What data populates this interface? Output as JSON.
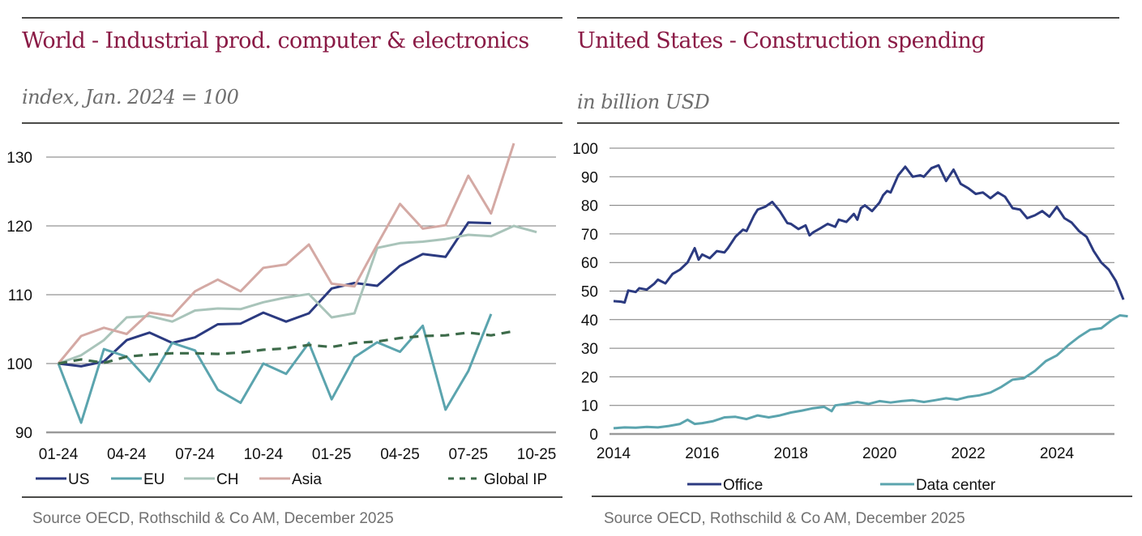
{
  "panels": {
    "left": {
      "title": "World - Industrial prod. computer & electronics",
      "subtitle": "index, Jan. 2024 = 100",
      "source": "Source OECD, Rothschild & Co AM, December 2025"
    },
    "right": {
      "title": "United States - Construction spending",
      "subtitle": "in billion USD",
      "source": "Source OECD, Rothschild & Co AM, December 2025"
    }
  },
  "chart_data": [
    {
      "type": "line",
      "title": "World - Industrial prod. computer & electronics",
      "subtitle": "index, Jan. 2024 = 100",
      "xlabel": "",
      "ylabel": "index, Jan. 2024 = 100",
      "ylim": [
        90,
        130
      ],
      "yticks": [
        90,
        100,
        110,
        120,
        130
      ],
      "xtick_labels": [
        "01-24",
        "04-24",
        "07-24",
        "10-24",
        "01-25",
        "04-25",
        "07-25",
        "10-25"
      ],
      "xtick_month_index": [
        0,
        3,
        6,
        9,
        12,
        15,
        18,
        21
      ],
      "x_months": [
        "01-24",
        "02-24",
        "03-24",
        "04-24",
        "05-24",
        "06-24",
        "07-24",
        "08-24",
        "09-24",
        "10-24",
        "11-24",
        "12-24",
        "01-25",
        "02-25",
        "03-25",
        "04-25",
        "05-25",
        "06-25",
        "07-25",
        "08-25",
        "09-25",
        "10-25"
      ],
      "grid": true,
      "legend_position": "bottom",
      "series": [
        {
          "name": "US",
          "color": "#2b3a80",
          "dashed": false,
          "values": [
            100,
            99.6,
            100.3,
            103.4,
            104.5,
            103.0,
            103.8,
            105.7,
            105.8,
            107.4,
            106.1,
            107.3,
            110.9,
            111.7,
            111.3,
            114.2,
            115.9,
            115.5,
            120.5,
            120.4,
            null,
            null
          ]
        },
        {
          "name": "EU",
          "color": "#5ba4ae",
          "dashed": false,
          "values": [
            100,
            91.4,
            102.1,
            101.0,
            97.4,
            103.0,
            101.9,
            96.2,
            94.3,
            100.0,
            98.5,
            103.0,
            94.8,
            100.9,
            103.1,
            101.7,
            105.5,
            93.3,
            98.9,
            107.2,
            null,
            null
          ]
        },
        {
          "name": "CH",
          "color": "#a9c4ba",
          "dashed": false,
          "values": [
            100,
            101.2,
            103.4,
            106.7,
            106.9,
            106.1,
            107.7,
            108.0,
            107.9,
            108.9,
            109.6,
            110.1,
            106.7,
            107.3,
            116.8,
            117.5,
            117.7,
            118.1,
            118.7,
            118.5,
            120.0,
            119.1
          ]
        },
        {
          "name": "Asia",
          "color": "#d4a9a4",
          "dashed": false,
          "values": [
            100,
            104.0,
            105.2,
            104.3,
            107.4,
            106.9,
            110.5,
            112.2,
            110.5,
            113.9,
            114.4,
            117.3,
            111.6,
            111.2,
            117.3,
            123.2,
            119.6,
            120.1,
            127.3,
            121.8,
            132.0,
            null
          ]
        },
        {
          "name": "Global IP",
          "color": "#3d6b4a",
          "dashed": true,
          "values": [
            100,
            100.6,
            100.1,
            101.0,
            101.3,
            101.5,
            101.5,
            101.4,
            101.6,
            102.0,
            102.2,
            102.7,
            102.4,
            103.0,
            103.2,
            103.7,
            104.0,
            104.1,
            104.5,
            104.1,
            104.7,
            null
          ]
        }
      ]
    },
    {
      "type": "line",
      "title": "United States - Construction spending",
      "subtitle": "in billion USD",
      "xlabel": "",
      "ylabel": "in billion USD",
      "ylim": [
        0,
        100
      ],
      "yticks": [
        0,
        10,
        20,
        30,
        40,
        50,
        60,
        70,
        80,
        90,
        100
      ],
      "xlim": [
        2014,
        2025.75
      ],
      "xtick_labels": [
        "2014",
        "2016",
        "2018",
        "2020",
        "2022",
        "2024"
      ],
      "xtick_values": [
        2014,
        2016,
        2018,
        2020,
        2022,
        2024
      ],
      "grid": true,
      "legend_position": "bottom",
      "series": [
        {
          "name": "Office",
          "color": "#2b3a80",
          "dashed": false,
          "x": [
            2014.0,
            2014.17,
            2014.25,
            2014.33,
            2014.5,
            2014.58,
            2014.75,
            2014.92,
            2015.0,
            2015.17,
            2015.33,
            2015.5,
            2015.67,
            2015.83,
            2015.92,
            2016.0,
            2016.17,
            2016.33,
            2016.5,
            2016.58,
            2016.75,
            2016.92,
            2017.0,
            2017.17,
            2017.25,
            2017.42,
            2017.58,
            2017.75,
            2017.92,
            2018.0,
            2018.17,
            2018.33,
            2018.42,
            2018.5,
            2018.67,
            2018.83,
            2019.0,
            2019.08,
            2019.25,
            2019.42,
            2019.5,
            2019.58,
            2019.67,
            2019.83,
            2020.0,
            2020.08,
            2020.17,
            2020.25,
            2020.42,
            2020.58,
            2020.75,
            2020.92,
            2021.0,
            2021.17,
            2021.33,
            2021.5,
            2021.67,
            2021.83,
            2022.0,
            2022.17,
            2022.33,
            2022.5,
            2022.67,
            2022.83,
            2023.0,
            2023.17,
            2023.33,
            2023.5,
            2023.67,
            2023.83,
            2024.0,
            2024.17,
            2024.33,
            2024.5,
            2024.67,
            2024.83,
            2025.0,
            2025.17,
            2025.33,
            2025.5
          ],
          "values": [
            46.5,
            46.3,
            46.0,
            50.2,
            49.7,
            51.0,
            50.5,
            52.6,
            54.0,
            52.7,
            56.0,
            57.5,
            60.0,
            65.0,
            61.0,
            62.8,
            61.5,
            64.0,
            63.5,
            65.0,
            69.0,
            71.5,
            71.0,
            76.5,
            78.5,
            79.5,
            81.2,
            78.0,
            73.8,
            73.5,
            71.7,
            73.0,
            69.5,
            70.5,
            72.0,
            73.5,
            72.5,
            75.0,
            74.2,
            77.0,
            75.0,
            79.0,
            80.0,
            78.0,
            81.0,
            83.5,
            85.0,
            84.5,
            90.5,
            93.5,
            90.0,
            90.5,
            90.0,
            93.0,
            94.0,
            88.5,
            92.5,
            87.5,
            86.0,
            84.0,
            84.5,
            82.5,
            84.5,
            83.0,
            79.0,
            78.5,
            75.5,
            76.5,
            78.0,
            76.0,
            79.5,
            75.5,
            74.0,
            71.0,
            69.0,
            64.0,
            60.0,
            57.5,
            53.5,
            47.0
          ]
        },
        {
          "name": "Data center",
          "color": "#5ba4ae",
          "dashed": false,
          "x": [
            2014.0,
            2014.25,
            2014.5,
            2014.75,
            2015.0,
            2015.25,
            2015.5,
            2015.67,
            2015.83,
            2016.0,
            2016.25,
            2016.5,
            2016.75,
            2017.0,
            2017.25,
            2017.5,
            2017.75,
            2018.0,
            2018.25,
            2018.5,
            2018.75,
            2018.92,
            2019.0,
            2019.25,
            2019.5,
            2019.75,
            2020.0,
            2020.25,
            2020.5,
            2020.75,
            2021.0,
            2021.25,
            2021.5,
            2021.75,
            2022.0,
            2022.25,
            2022.5,
            2022.75,
            2023.0,
            2023.25,
            2023.5,
            2023.75,
            2024.0,
            2024.25,
            2024.5,
            2024.75,
            2025.0,
            2025.25,
            2025.42,
            2025.6
          ],
          "values": [
            2.0,
            2.3,
            2.2,
            2.5,
            2.3,
            2.8,
            3.5,
            5.0,
            3.5,
            3.8,
            4.5,
            5.8,
            6.0,
            5.2,
            6.5,
            5.8,
            6.5,
            7.5,
            8.2,
            9.0,
            9.5,
            8.0,
            10.0,
            10.5,
            11.2,
            10.5,
            11.5,
            11.0,
            11.5,
            11.8,
            11.2,
            11.8,
            12.5,
            12.0,
            13.0,
            13.5,
            14.5,
            16.5,
            19.0,
            19.5,
            22.0,
            25.5,
            27.5,
            31.0,
            34.0,
            36.5,
            37.0,
            40.0,
            41.5,
            41.2
          ]
        }
      ]
    }
  ]
}
